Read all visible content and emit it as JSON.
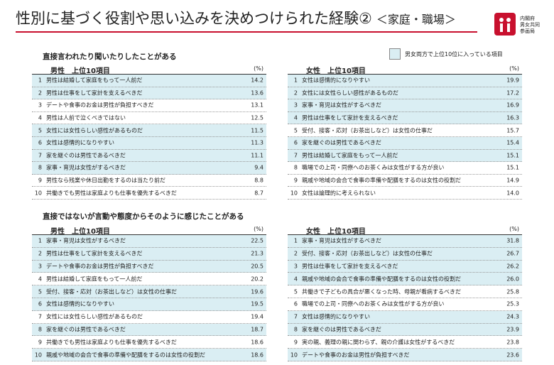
{
  "header": {
    "title": "性別に基づく役割や思い込みを決めつけられた経験②",
    "subtitle": "＜家庭・職場＞",
    "logo_text": [
      "内閣府",
      "男女共同",
      "参画局"
    ]
  },
  "legend": "男女両方で上位10位に入っている項目",
  "sections": [
    {
      "heading": "直接言われたり聞いたりしたことがある",
      "tables": [
        {
          "title": "男性　上位10項目",
          "unit": "(%)",
          "rows": [
            {
              "rank": 1,
              "item": "男性は結婚して家庭をもって一人前だ",
              "value": "14.2",
              "shared": true
            },
            {
              "rank": 2,
              "item": "男性は仕事をして家計を支えるべきだ",
              "value": "13.6",
              "shared": true
            },
            {
              "rank": 3,
              "item": "デートや食事のお金は男性が負担すべきだ",
              "value": "13.1",
              "shared": false
            },
            {
              "rank": 4,
              "item": "男性は人前で泣くべきではない",
              "value": "12.5",
              "shared": false
            },
            {
              "rank": 5,
              "item": "女性には女性らしい感性があるものだ",
              "value": "11.5",
              "shared": true
            },
            {
              "rank": 6,
              "item": "女性は感情的になりやすい",
              "value": "11.3",
              "shared": true
            },
            {
              "rank": 7,
              "item": "家を継ぐのは男性であるべきだ",
              "value": "11.1",
              "shared": true
            },
            {
              "rank": 8,
              "item": "家事・育児は女性がするべきだ",
              "value": "9.4",
              "shared": true
            },
            {
              "rank": 9,
              "item": "男性なら残業や休日出勤をするのは当たり前だ",
              "value": "8.8",
              "shared": false
            },
            {
              "rank": 10,
              "item": "共働きでも男性は家庭よりも仕事を優先するべきだ",
              "value": "8.7",
              "shared": false
            }
          ]
        },
        {
          "title": "女性　上位10項目",
          "unit": "(%)",
          "rows": [
            {
              "rank": 1,
              "item": "女性は感情的になりやすい",
              "value": "19.9",
              "shared": true
            },
            {
              "rank": 2,
              "item": "女性には女性らしい感性があるものだ",
              "value": "17.2",
              "shared": true
            },
            {
              "rank": 3,
              "item": "家事・育児は女性がするべきだ",
              "value": "16.9",
              "shared": true
            },
            {
              "rank": 4,
              "item": "男性は仕事をして家計を支えるべきだ",
              "value": "16.3",
              "shared": true
            },
            {
              "rank": 5,
              "item": "受付、接客・応対（お茶出しなど）は女性の仕事だ",
              "value": "15.7",
              "shared": false
            },
            {
              "rank": 6,
              "item": "家を継ぐのは男性であるべきだ",
              "value": "15.4",
              "shared": true
            },
            {
              "rank": 7,
              "item": "男性は結婚して家庭をもって一人前だ",
              "value": "15.1",
              "shared": true
            },
            {
              "rank": 8,
              "item": "職場での上司・同僚へのお茶くみは女性がする方が良い",
              "value": "15.1",
              "shared": false
            },
            {
              "rank": 9,
              "item": "親戚や地域の会合で食事の準備や配膳をするのは女性の役割だ",
              "value": "14.9",
              "shared": false
            },
            {
              "rank": 10,
              "item": "女性は論理的に考えられない",
              "value": "14.0",
              "shared": false
            }
          ]
        }
      ]
    },
    {
      "heading": "直接ではないが言動や態度からそのように感じたことがある",
      "tables": [
        {
          "title": "男性　上位10項目",
          "unit": "(%)",
          "rows": [
            {
              "rank": 1,
              "item": "家事・育児は女性がするべきだ",
              "value": "22.5",
              "shared": true
            },
            {
              "rank": 2,
              "item": "男性は仕事をして家計を支えるべきだ",
              "value": "21.3",
              "shared": true
            },
            {
              "rank": 3,
              "item": "デートや食事のお金は男性が負担すべきだ",
              "value": "20.5",
              "shared": true
            },
            {
              "rank": 4,
              "item": "男性は結婚して家庭をもって一人前だ",
              "value": "20.2",
              "shared": false
            },
            {
              "rank": 5,
              "item": "受付、接客・応対（お茶出しなど）は女性の仕事だ",
              "value": "19.6",
              "shared": true
            },
            {
              "rank": 6,
              "item": "女性は感情的になりやすい",
              "value": "19.5",
              "shared": true
            },
            {
              "rank": 7,
              "item": "女性には女性らしい感性があるものだ",
              "value": "19.4",
              "shared": false
            },
            {
              "rank": 8,
              "item": "家を継ぐのは男性であるべきだ",
              "value": "18.7",
              "shared": true
            },
            {
              "rank": 9,
              "item": "共働きでも男性は家庭よりも仕事を優先するべきだ",
              "value": "18.6",
              "shared": false
            },
            {
              "rank": 10,
              "item": "親戚や地域の会合で食事の準備や配膳をするのは女性の役割だ",
              "value": "18.6",
              "shared": true
            }
          ]
        },
        {
          "title": "女性　上位10項目",
          "unit": "(%)",
          "rows": [
            {
              "rank": 1,
              "item": "家事・育児は女性がするべきだ",
              "value": "31.8",
              "shared": true
            },
            {
              "rank": 2,
              "item": "受付、接客・応対（お茶出しなど）は女性の仕事だ",
              "value": "26.7",
              "shared": true
            },
            {
              "rank": 3,
              "item": "男性は仕事をして家計を支えるべきだ",
              "value": "26.2",
              "shared": true
            },
            {
              "rank": 4,
              "item": "親戚や地域の会合で食事の準備や配膳をするのは女性の役割だ",
              "value": "26.0",
              "shared": true
            },
            {
              "rank": 5,
              "item": "共働きで子どもの具合が悪くなった時、母親が看病するべきだ",
              "value": "25.8",
              "shared": false
            },
            {
              "rank": 6,
              "item": "職場での上司・同僚へのお茶くみは女性がする方が良い",
              "value": "25.3",
              "shared": false
            },
            {
              "rank": 7,
              "item": "女性は感情的になりやすい",
              "value": "24.3",
              "shared": true
            },
            {
              "rank": 8,
              "item": "家を継ぐのは男性であるべきだ",
              "value": "23.9",
              "shared": true
            },
            {
              "rank": 9,
              "item": "実の親、義理の親に関わらず、親の介護は女性がするべきだ",
              "value": "23.8",
              "shared": false
            },
            {
              "rank": 10,
              "item": "デートや食事のお金は男性が負担すべきだ",
              "value": "23.6",
              "shared": true
            }
          ]
        }
      ]
    }
  ]
}
